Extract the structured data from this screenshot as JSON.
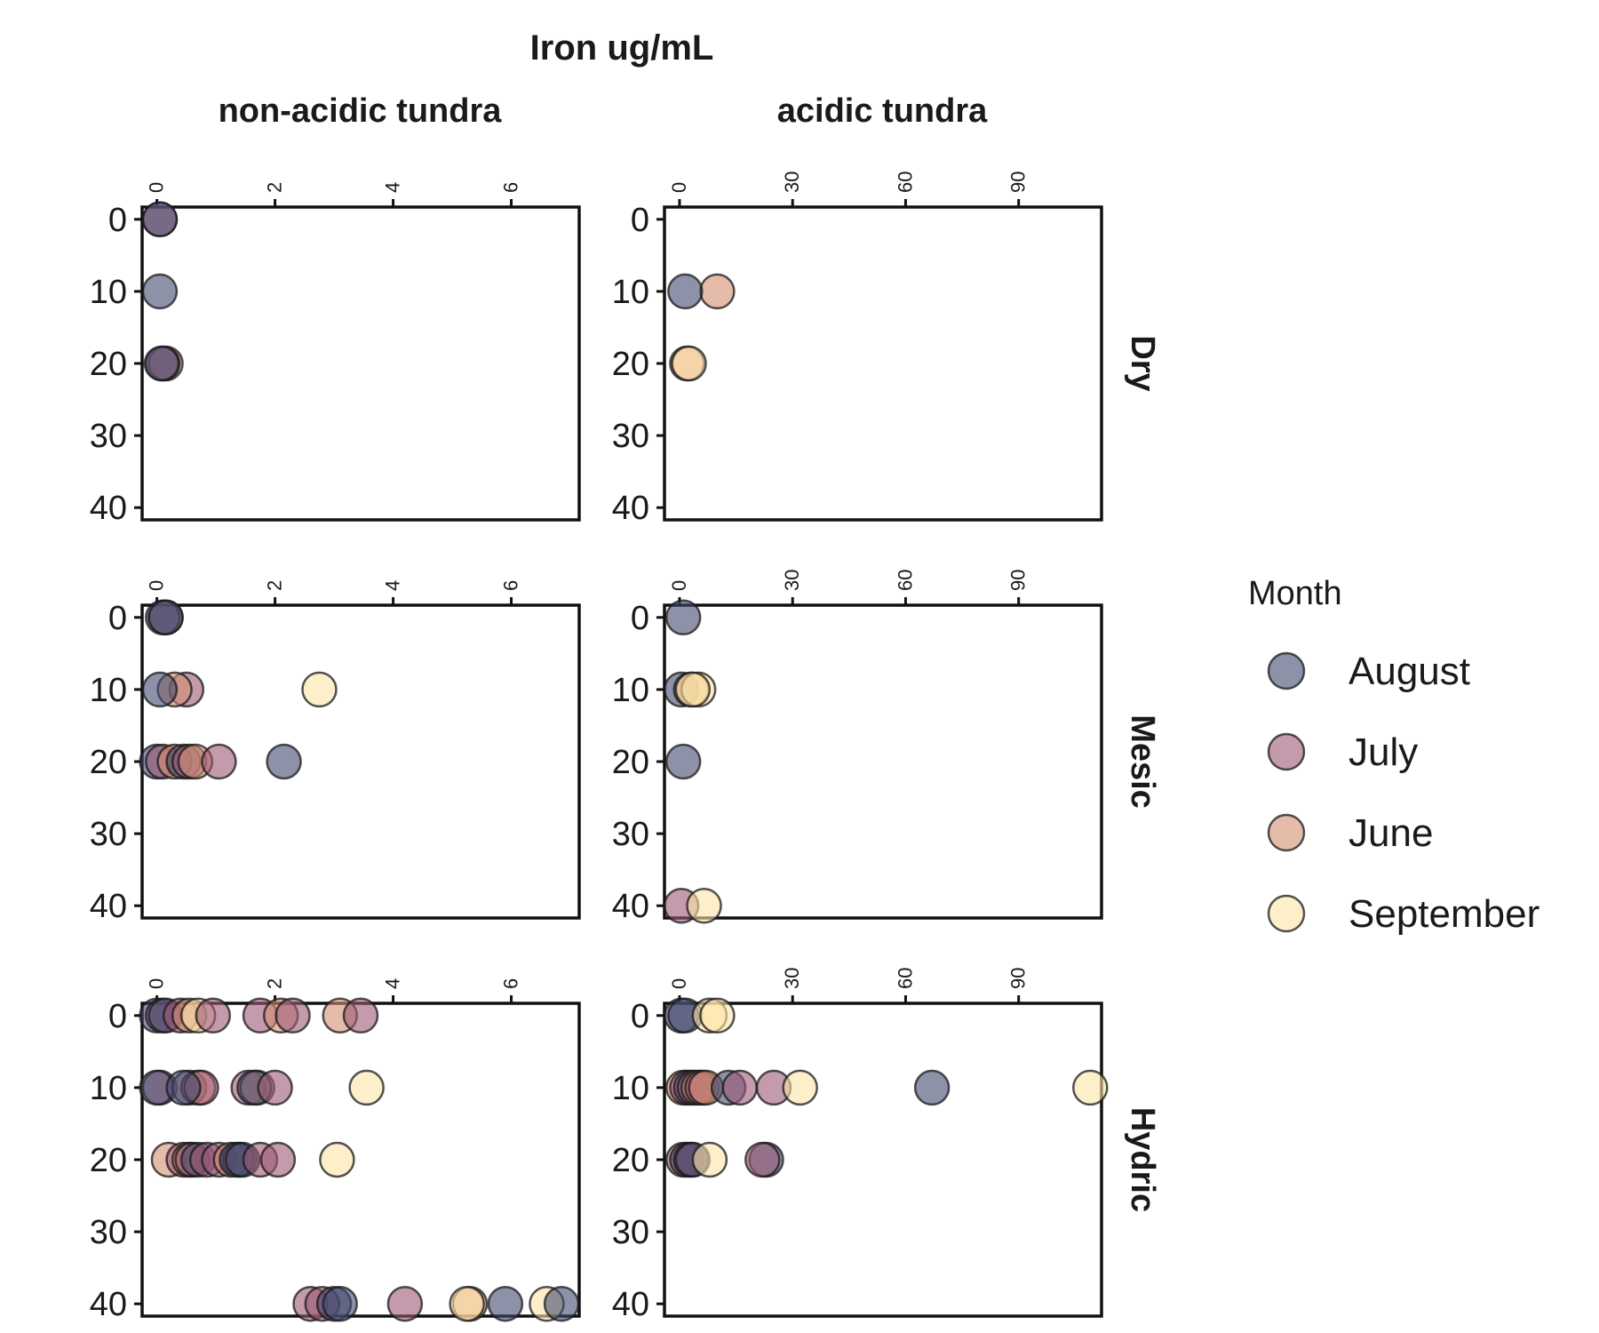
{
  "chart_data": {
    "type": "scatter",
    "title": "Iron ug/mL",
    "columns": [
      {
        "label": "non-acidic tundra",
        "x_ticks": [
          0,
          2,
          4,
          6
        ],
        "x_range": [
          -0.25,
          7.15
        ]
      },
      {
        "label": "acidic tundra",
        "x_ticks": [
          0,
          30,
          60,
          90
        ],
        "x_range": [
          -4,
          112
        ]
      }
    ],
    "rows": [
      "Dry",
      "Mesic",
      "Hydric"
    ],
    "y_ticks": [
      0,
      10,
      20,
      30,
      40
    ],
    "y_range": [
      -1.7,
      41.7
    ],
    "y_reversed": true,
    "legend": {
      "title": "Month",
      "position": "right",
      "entries": [
        {
          "name": "August",
          "color": "#434a6e"
        },
        {
          "name": "July",
          "color": "#9b5876"
        },
        {
          "name": "June",
          "color": "#d48e6f"
        },
        {
          "name": "September",
          "color": "#fde5a8"
        }
      ]
    },
    "panels": [
      {
        "row": "Dry",
        "column": "non-acidic tundra",
        "points": [
          {
            "month": "July",
            "x": 0.05,
            "y": 0
          },
          {
            "month": "August",
            "x": 0.05,
            "y": 0
          },
          {
            "month": "August",
            "x": 0.05,
            "y": 10
          },
          {
            "month": "June",
            "x": 0.15,
            "y": 20
          },
          {
            "month": "July",
            "x": 0.1,
            "y": 20
          },
          {
            "month": "August",
            "x": 0.08,
            "y": 20
          }
        ]
      },
      {
        "row": "Dry",
        "column": "acidic tundra",
        "points": [
          {
            "month": "June",
            "x": 10,
            "y": 10
          },
          {
            "month": "August",
            "x": 1.5,
            "y": 10
          },
          {
            "month": "June",
            "x": 2,
            "y": 20
          },
          {
            "month": "September",
            "x": 2.5,
            "y": 20
          }
        ]
      },
      {
        "row": "Mesic",
        "column": "non-acidic tundra",
        "points": [
          {
            "month": "June",
            "x": 0.15,
            "y": 0
          },
          {
            "month": "August",
            "x": 0.1,
            "y": 0
          },
          {
            "month": "August",
            "x": 0.15,
            "y": 0
          },
          {
            "month": "July",
            "x": 0.5,
            "y": 10
          },
          {
            "month": "June",
            "x": 0.3,
            "y": 10
          },
          {
            "month": "August",
            "x": 0.05,
            "y": 10
          },
          {
            "month": "September",
            "x": 2.75,
            "y": 10
          },
          {
            "month": "August",
            "x": 0,
            "y": 20
          },
          {
            "month": "July",
            "x": 0.1,
            "y": 20
          },
          {
            "month": "June",
            "x": 0.3,
            "y": 20
          },
          {
            "month": "August",
            "x": 0.45,
            "y": 20
          },
          {
            "month": "July",
            "x": 0.55,
            "y": 20
          },
          {
            "month": "June",
            "x": 0.65,
            "y": 20
          },
          {
            "month": "July",
            "x": 1.05,
            "y": 20
          },
          {
            "month": "August",
            "x": 2.15,
            "y": 20
          }
        ]
      },
      {
        "row": "Mesic",
        "column": "acidic tundra",
        "points": [
          {
            "month": "August",
            "x": 1,
            "y": 0
          },
          {
            "month": "August",
            "x": 0.5,
            "y": 10
          },
          {
            "month": "June",
            "x": 3,
            "y": 10
          },
          {
            "month": "September",
            "x": 5,
            "y": 10
          },
          {
            "month": "September",
            "x": 3.5,
            "y": 10
          },
          {
            "month": "August",
            "x": 1,
            "y": 20
          },
          {
            "month": "July",
            "x": 0.5,
            "y": 40
          },
          {
            "month": "September",
            "x": 6.5,
            "y": 40
          }
        ]
      },
      {
        "row": "Hydric",
        "column": "non-acidic tundra",
        "points": [
          {
            "month": "August",
            "x": 0,
            "y": 0
          },
          {
            "month": "July",
            "x": 0.1,
            "y": 0
          },
          {
            "month": "August",
            "x": 0.15,
            "y": 0
          },
          {
            "month": "July",
            "x": 0.4,
            "y": 0
          },
          {
            "month": "June",
            "x": 0.55,
            "y": 0
          },
          {
            "month": "September",
            "x": 0.7,
            "y": 0
          },
          {
            "month": "July",
            "x": 0.95,
            "y": 0
          },
          {
            "month": "July",
            "x": 1.75,
            "y": 0
          },
          {
            "month": "June",
            "x": 2.1,
            "y": 0
          },
          {
            "month": "July",
            "x": 2.3,
            "y": 0
          },
          {
            "month": "June",
            "x": 3.1,
            "y": 0
          },
          {
            "month": "July",
            "x": 3.45,
            "y": 0
          },
          {
            "month": "July",
            "x": 0.05,
            "y": 10
          },
          {
            "month": "August",
            "x": 0,
            "y": 10
          },
          {
            "month": "July",
            "x": 0.55,
            "y": 10
          },
          {
            "month": "June",
            "x": 0.7,
            "y": 10
          },
          {
            "month": "July",
            "x": 0.75,
            "y": 10
          },
          {
            "month": "August",
            "x": 0.45,
            "y": 10
          },
          {
            "month": "July",
            "x": 1.55,
            "y": 10
          },
          {
            "month": "June",
            "x": 1.7,
            "y": 10
          },
          {
            "month": "August",
            "x": 1.65,
            "y": 10
          },
          {
            "month": "July",
            "x": 2.0,
            "y": 10
          },
          {
            "month": "September",
            "x": 3.55,
            "y": 10
          },
          {
            "month": "June",
            "x": 0.2,
            "y": 20
          },
          {
            "month": "July",
            "x": 0.45,
            "y": 20
          },
          {
            "month": "June",
            "x": 0.55,
            "y": 20
          },
          {
            "month": "July",
            "x": 0.6,
            "y": 20
          },
          {
            "month": "August",
            "x": 0.7,
            "y": 20
          },
          {
            "month": "July",
            "x": 0.85,
            "y": 20
          },
          {
            "month": "July",
            "x": 1.05,
            "y": 20
          },
          {
            "month": "June",
            "x": 1.25,
            "y": 20
          },
          {
            "month": "July",
            "x": 1.4,
            "y": 20
          },
          {
            "month": "August",
            "x": 1.35,
            "y": 20
          },
          {
            "month": "August",
            "x": 1.45,
            "y": 20
          },
          {
            "month": "July",
            "x": 1.75,
            "y": 20
          },
          {
            "month": "July",
            "x": 2.05,
            "y": 20
          },
          {
            "month": "September",
            "x": 3.05,
            "y": 20
          },
          {
            "month": "July",
            "x": 2.6,
            "y": 40
          },
          {
            "month": "July",
            "x": 2.8,
            "y": 40
          },
          {
            "month": "August",
            "x": 3.0,
            "y": 40
          },
          {
            "month": "August",
            "x": 3.1,
            "y": 40
          },
          {
            "month": "July",
            "x": 4.2,
            "y": 40
          },
          {
            "month": "June",
            "x": 5.3,
            "y": 40
          },
          {
            "month": "September",
            "x": 5.25,
            "y": 40
          },
          {
            "month": "August",
            "x": 5.9,
            "y": 40
          },
          {
            "month": "September",
            "x": 6.6,
            "y": 40
          },
          {
            "month": "August",
            "x": 6.85,
            "y": 40
          }
        ]
      },
      {
        "row": "Hydric",
        "column": "acidic tundra",
        "points": [
          {
            "month": "August",
            "x": 0.5,
            "y": 0
          },
          {
            "month": "August",
            "x": 1.5,
            "y": 0
          },
          {
            "month": "September",
            "x": 8,
            "y": 0
          },
          {
            "month": "September",
            "x": 10,
            "y": 0
          },
          {
            "month": "June",
            "x": 1,
            "y": 10
          },
          {
            "month": "July",
            "x": 2,
            "y": 10
          },
          {
            "month": "August",
            "x": 3,
            "y": 10
          },
          {
            "month": "July",
            "x": 4,
            "y": 10
          },
          {
            "month": "June",
            "x": 5,
            "y": 10
          },
          {
            "month": "July",
            "x": 6,
            "y": 10
          },
          {
            "month": "June",
            "x": 7,
            "y": 10
          },
          {
            "month": "August",
            "x": 13,
            "y": 10
          },
          {
            "month": "July",
            "x": 16,
            "y": 10
          },
          {
            "month": "July",
            "x": 25,
            "y": 10
          },
          {
            "month": "September",
            "x": 32,
            "y": 10
          },
          {
            "month": "August",
            "x": 67,
            "y": 10
          },
          {
            "month": "September",
            "x": 109,
            "y": 10
          },
          {
            "month": "July",
            "x": 1,
            "y": 20
          },
          {
            "month": "August",
            "x": 2,
            "y": 20
          },
          {
            "month": "July",
            "x": 3,
            "y": 20
          },
          {
            "month": "August",
            "x": 3.5,
            "y": 20
          },
          {
            "month": "September",
            "x": 8,
            "y": 20
          },
          {
            "month": "August",
            "x": 23,
            "y": 20
          },
          {
            "month": "July",
            "x": 22,
            "y": 20
          }
        ]
      }
    ]
  }
}
